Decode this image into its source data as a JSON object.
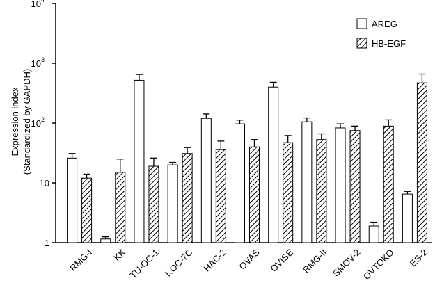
{
  "chart_data": {
    "type": "bar",
    "scale": "log10",
    "ylabel": "Expression index",
    "ylabel_sub": "(Standardized by GAPDH)",
    "ylim": [
      1,
      10000
    ],
    "yticks": [
      {
        "value": 1,
        "base": "1",
        "exp": ""
      },
      {
        "value": 10,
        "base": "10",
        "exp": ""
      },
      {
        "value": 100,
        "base": "10",
        "exp": "2"
      },
      {
        "value": 1000,
        "base": "10",
        "exp": "3"
      },
      {
        "value": 10000,
        "base": "10",
        "exp": "4"
      }
    ],
    "categories": [
      "RMG-I",
      "KK",
      "TU-OC-1",
      "KOC-7C",
      "HAC-2",
      "OVAS",
      "OVISE",
      "RMG-II",
      "SMOV-2",
      "OVTOKO",
      "ES-2"
    ],
    "series": [
      {
        "name": "AREG",
        "fill": "#ffffff",
        "pattern": "none",
        "values": [
          26,
          1.15,
          520,
          20,
          120,
          97,
          400,
          105,
          83,
          1.9,
          6.5
        ],
        "errors": [
          31,
          1.25,
          650,
          22,
          142,
          112,
          480,
          122,
          97,
          2.2,
          7.2
        ]
      },
      {
        "name": "HB-EGF",
        "fill": "#ffffff",
        "pattern": "hatch",
        "values": [
          12,
          15,
          19,
          31,
          36,
          40,
          47,
          53,
          75,
          89,
          470
        ],
        "errors": [
          14,
          25,
          26,
          39,
          50,
          53,
          62,
          66,
          89,
          113,
          660
        ]
      }
    ],
    "legend_position": "top-right",
    "grid": false
  }
}
